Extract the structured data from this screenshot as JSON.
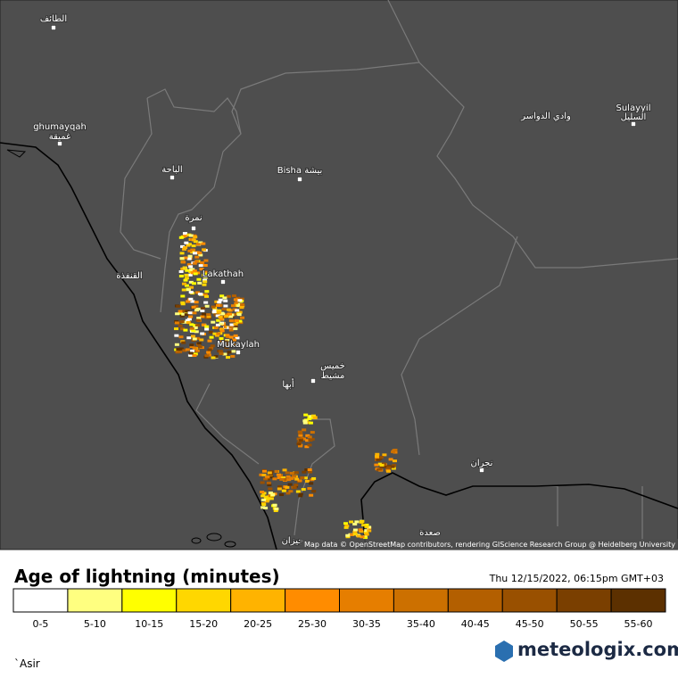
{
  "map": {
    "places": [
      "الطائف",
      "ghumayqah",
      "غميقة",
      "الباحة",
      "Bisha بيشة",
      "نمرة",
      "القنفذة",
      "Lakathah",
      "Mukaylah",
      "خميس",
      "مشيط",
      "أبها",
      "وادي الدواسر",
      "Sulayyil",
      "السليل",
      "نجران",
      "صعدة",
      "جيزان"
    ],
    "attribution": "Map data © OpenStreetMap contributors, rendering GIScience Research Group @ Heidelberg University"
  },
  "legend": {
    "title": "Age of lightning (minutes)",
    "timestamp": "Thu 12/15/2022, 06:15pm GMT+03",
    "bins": [
      {
        "label": "0-5",
        "color": "#ffffff"
      },
      {
        "label": "5-10",
        "color": "#ffff80"
      },
      {
        "label": "10-15",
        "color": "#ffff00"
      },
      {
        "label": "15-20",
        "color": "#ffd700"
      },
      {
        "label": "20-25",
        "color": "#ffb300"
      },
      {
        "label": "25-30",
        "color": "#ff8c00"
      },
      {
        "label": "30-35",
        "color": "#e67e00"
      },
      {
        "label": "35-40",
        "color": "#cc7000"
      },
      {
        "label": "40-45",
        "color": "#b35f00"
      },
      {
        "label": "45-50",
        "color": "#995000"
      },
      {
        "label": "50-55",
        "color": "#7a3f00"
      },
      {
        "label": "55-60",
        "color": "#5c3000"
      }
    ]
  },
  "footer": {
    "region": "`Asir",
    "brand": "meteologix.com"
  }
}
